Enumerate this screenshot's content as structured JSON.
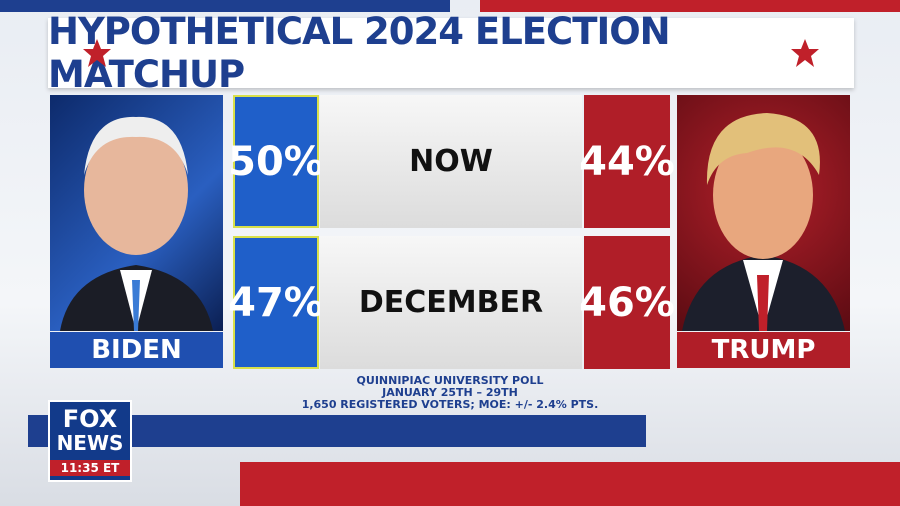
{
  "header": {
    "title": "HYPOTHETICAL 2024 ELECTION MATCHUP"
  },
  "candidates": {
    "left": "BIDEN",
    "right": "TRUMP"
  },
  "rows": [
    {
      "label": "NOW",
      "left": "50%",
      "right": "44%"
    },
    {
      "label": "DECEMBER",
      "left": "47%",
      "right": "46%"
    }
  ],
  "source": [
    "QUINNIPIAC UNIVERSITY POLL",
    "JANUARY 25TH – 29TH",
    "1,650 REGISTERED VOTERS; MOE: +/- 2.4% PTS."
  ],
  "logo": {
    "line1": "FOX",
    "line2": "NEWS",
    "time": "11:35 ET"
  }
}
